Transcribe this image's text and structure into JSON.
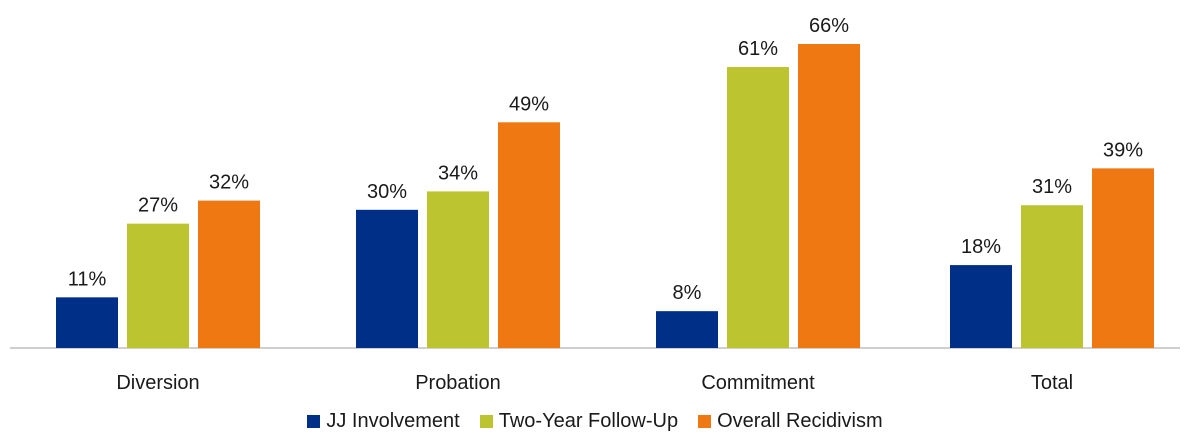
{
  "chart_data": {
    "type": "bar",
    "title": "",
    "xlabel": "",
    "ylabel": "",
    "ylim": [
      0,
      66
    ],
    "grid": false,
    "legend_position": "bottom",
    "categories": [
      "Diversion",
      "Probation",
      "Commitment",
      "Total"
    ],
    "series": [
      {
        "name": "JJ Involvement",
        "color": "#002f87",
        "values": [
          11,
          30,
          8,
          18
        ],
        "labels": [
          "11%",
          "30%",
          "8%",
          "18%"
        ]
      },
      {
        "name": "Two-Year Follow-Up",
        "color": "#bcc530",
        "values": [
          27,
          34,
          61,
          31
        ],
        "labels": [
          "27%",
          "34%",
          "61%",
          "31%"
        ]
      },
      {
        "name": "Overall Recidivism",
        "color": "#f07813",
        "values": [
          32,
          49,
          66,
          39
        ],
        "labels": [
          "32%",
          "49%",
          "66%",
          "39%"
        ]
      }
    ]
  }
}
